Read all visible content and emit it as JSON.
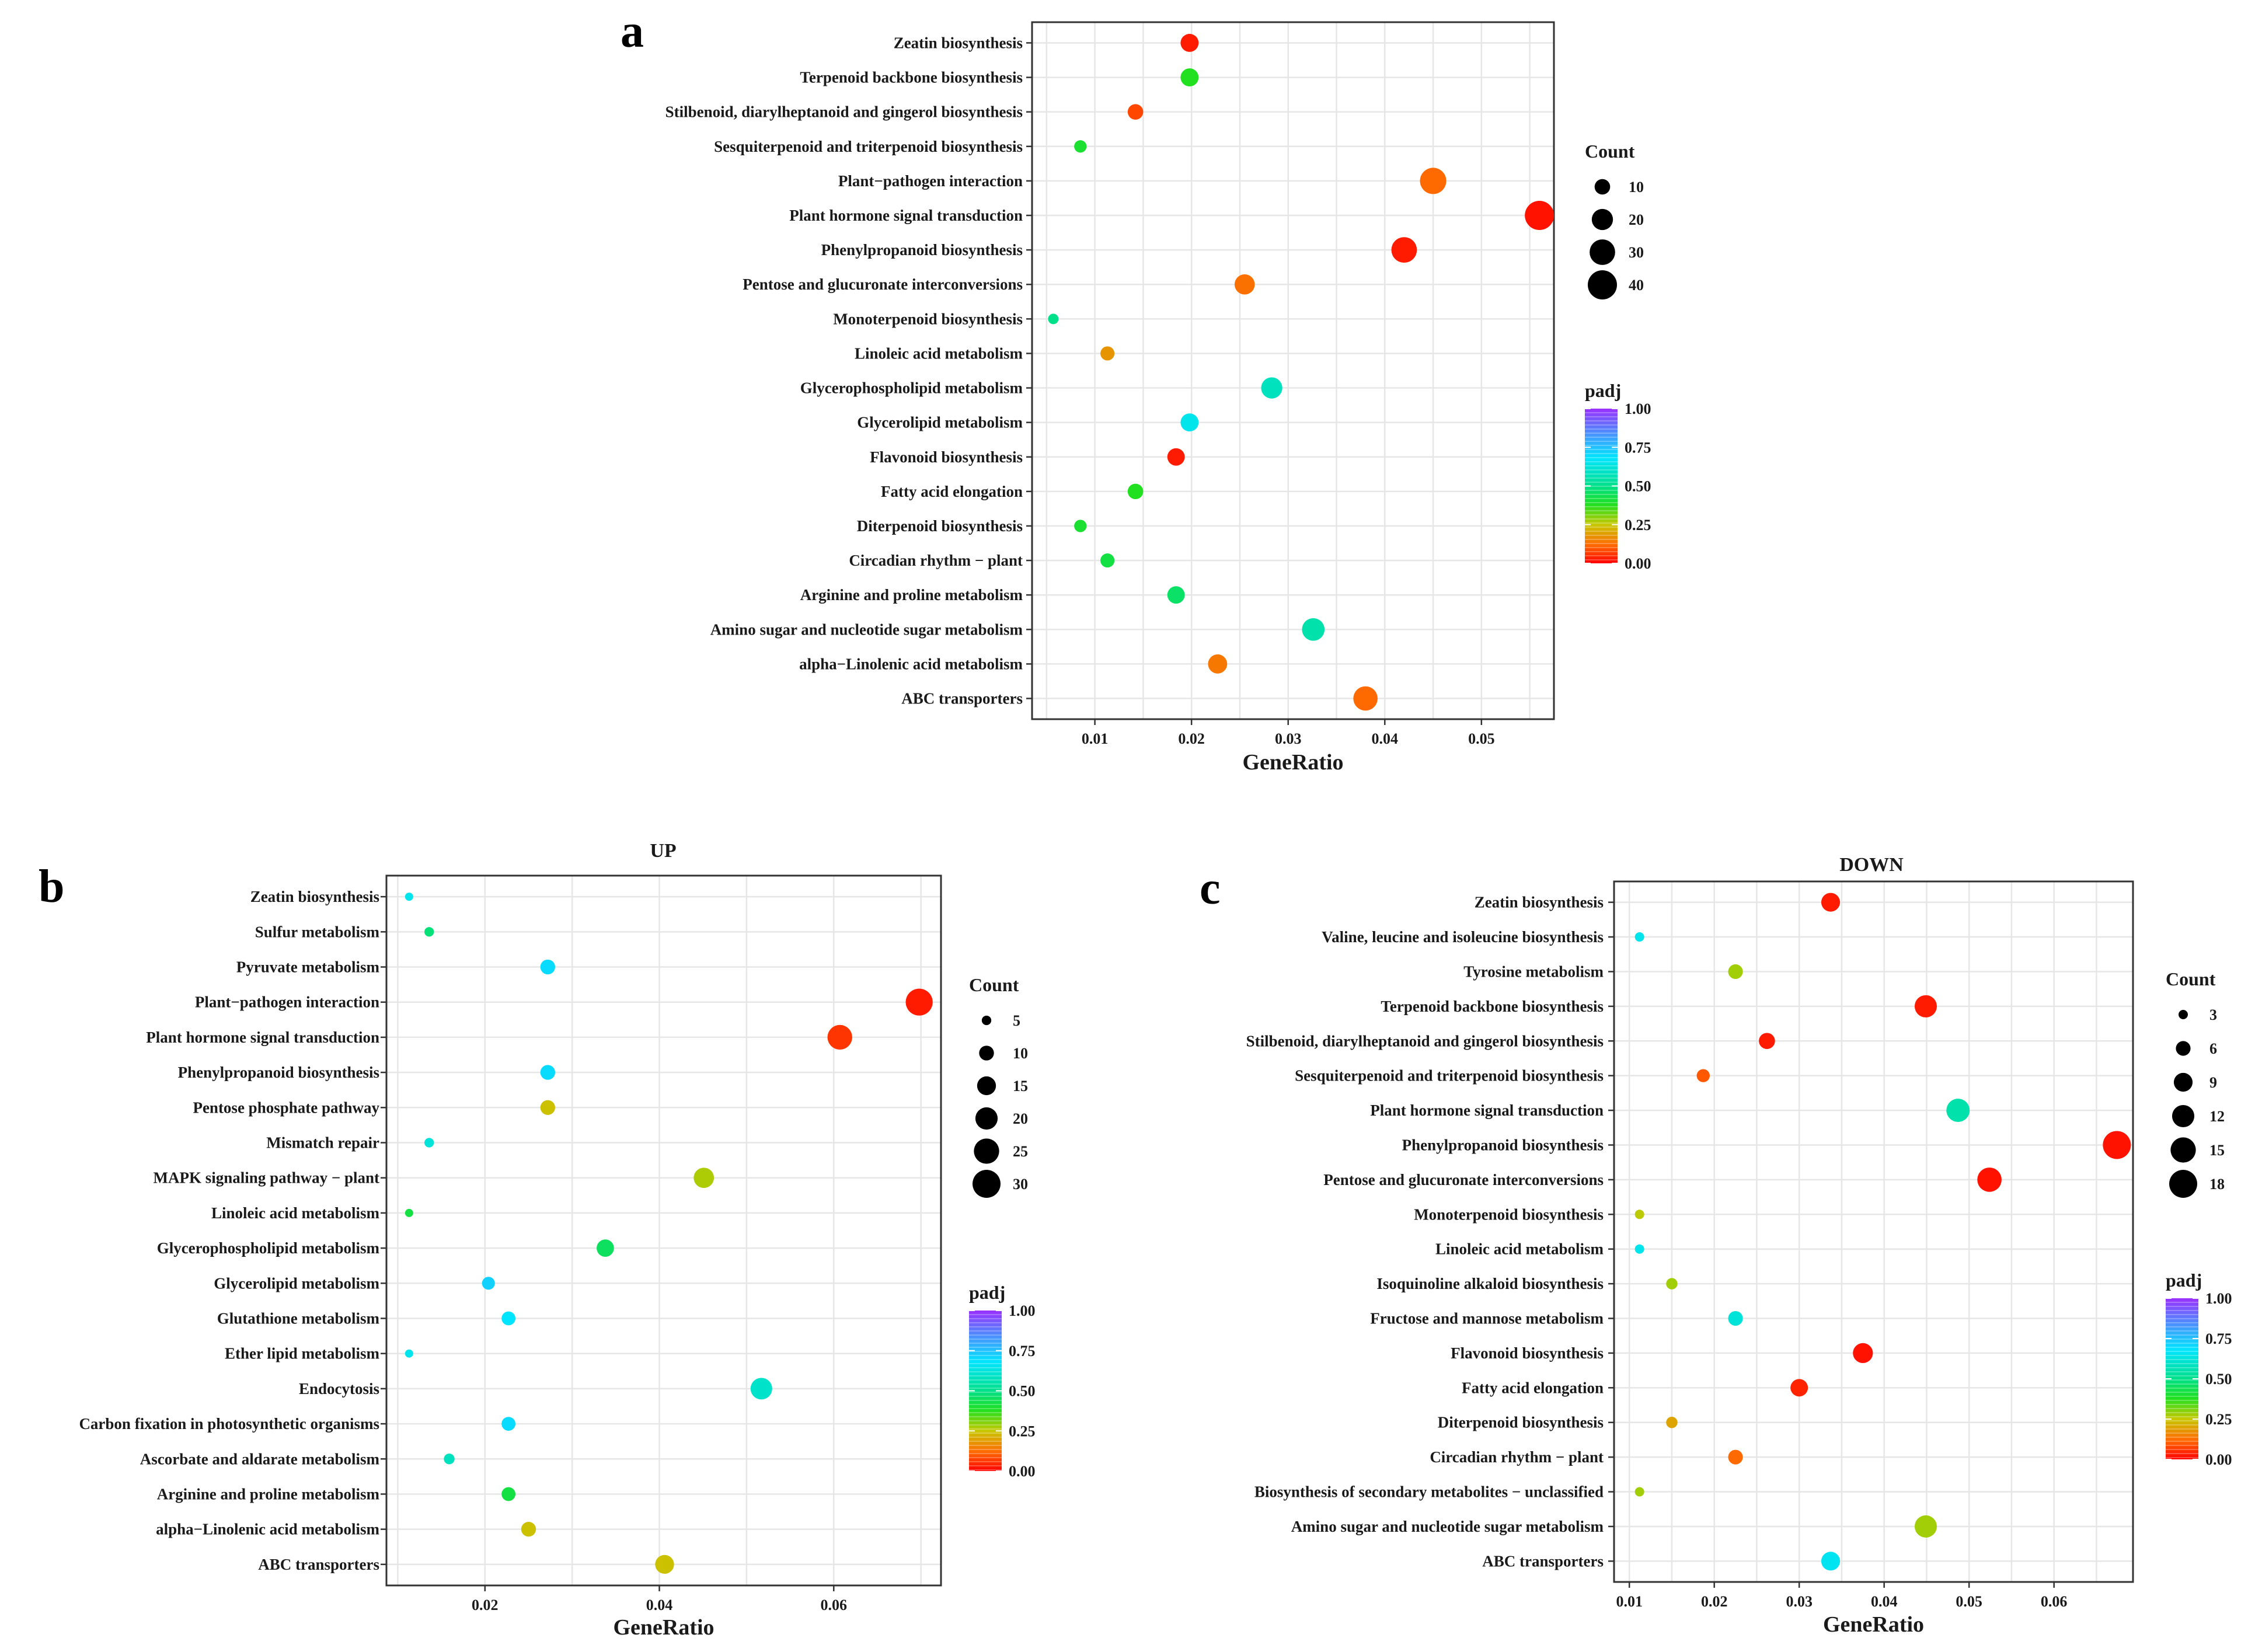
{
  "chart_data": [
    {
      "panel": "a",
      "type": "scatter",
      "title": "",
      "xlabel": "GeneRatio",
      "ylabel": "",
      "xlim": [
        0.0035,
        0.0575
      ],
      "xticks": [
        0.01,
        0.02,
        0.03,
        0.04,
        0.05
      ],
      "xtick_labels": [
        "0.01",
        "0.02",
        "0.03",
        "0.04",
        "0.05"
      ],
      "categories": [
        "Zeatin biosynthesis",
        "Terpenoid backbone biosynthesis",
        "Stilbenoid, diarylheptanoid and gingerol biosynthesis",
        "Sesquiterpenoid and triterpenoid biosynthesis",
        "Plant−pathogen interaction",
        "Plant hormone signal transduction",
        "Phenylpropanoid biosynthesis",
        "Pentose and glucuronate interconversions",
        "Monoterpenoid biosynthesis",
        "Linoleic acid metabolism",
        "Glycerophospholipid metabolism",
        "Glycerolipid metabolism",
        "Flavonoid biosynthesis",
        "Fatty acid elongation",
        "Diterpenoid biosynthesis",
        "Circadian rhythm − plant",
        "Arginine and proline metabolism",
        "Amino sugar and nucleotide sugar metabolism",
        "alpha−Linolenic acid metabolism",
        "ABC transporters"
      ],
      "points": [
        {
          "gene_ratio": 0.0198,
          "count": 14,
          "padj": 0.03
        },
        {
          "gene_ratio": 0.0198,
          "count": 14,
          "padj": 0.38
        },
        {
          "gene_ratio": 0.0142,
          "count": 10,
          "padj": 0.08
        },
        {
          "gene_ratio": 0.0085,
          "count": 6,
          "padj": 0.4
        },
        {
          "gene_ratio": 0.045,
          "count": 32,
          "padj": 0.12
        },
        {
          "gene_ratio": 0.056,
          "count": 40,
          "padj": 0.02
        },
        {
          "gene_ratio": 0.042,
          "count": 30,
          "padj": 0.03
        },
        {
          "gene_ratio": 0.0255,
          "count": 18,
          "padj": 0.13
        },
        {
          "gene_ratio": 0.0057,
          "count": 4,
          "padj": 0.5
        },
        {
          "gene_ratio": 0.0113,
          "count": 8,
          "padj": 0.18
        },
        {
          "gene_ratio": 0.0283,
          "count": 20,
          "padj": 0.58
        },
        {
          "gene_ratio": 0.0198,
          "count": 14,
          "padj": 0.65
        },
        {
          "gene_ratio": 0.0184,
          "count": 13,
          "padj": 0.03
        },
        {
          "gene_ratio": 0.0142,
          "count": 10,
          "padj": 0.38
        },
        {
          "gene_ratio": 0.0085,
          "count": 6,
          "padj": 0.4
        },
        {
          "gene_ratio": 0.0113,
          "count": 8,
          "padj": 0.42
        },
        {
          "gene_ratio": 0.0184,
          "count": 13,
          "padj": 0.46
        },
        {
          "gene_ratio": 0.0326,
          "count": 23,
          "padj": 0.55
        },
        {
          "gene_ratio": 0.0227,
          "count": 16,
          "padj": 0.14
        },
        {
          "gene_ratio": 0.038,
          "count": 27,
          "padj": 0.12
        }
      ],
      "size_legend": {
        "title": "Count",
        "values": [
          10,
          20,
          30,
          40
        ],
        "labels": [
          "10",
          "20",
          "30",
          "40"
        ]
      },
      "color_legend": {
        "title": "padj",
        "ticks": [
          1.0,
          0.75,
          0.5,
          0.25,
          0.0
        ],
        "labels": [
          "1.00",
          "0.75",
          "0.50",
          "0.25",
          "0.00"
        ]
      }
    },
    {
      "panel": "b",
      "type": "scatter",
      "title": "UP",
      "xlabel": "GeneRatio",
      "ylabel": "",
      "xlim": [
        0.0087,
        0.0723
      ],
      "xticks": [
        0.02,
        0.04,
        0.06
      ],
      "xtick_labels": [
        "0.02",
        "0.04",
        "0.06"
      ],
      "categories": [
        "Zeatin biosynthesis",
        "Sulfur metabolism",
        "Pyruvate metabolism",
        "Plant−pathogen interaction",
        "Plant hormone signal transduction",
        "Phenylpropanoid biosynthesis",
        "Pentose phosphate pathway",
        "Mismatch repair",
        "MAPK signaling pathway − plant",
        "Linoleic acid metabolism",
        "Glycerophospholipid metabolism",
        "Glycerolipid metabolism",
        "Glutathione metabolism",
        "Ether lipid metabolism",
        "Endocytosis",
        "Carbon fixation in photosynthetic organisms",
        "Ascorbate and aldarate metabolism",
        "Arginine and proline metabolism",
        "alpha−Linolenic acid metabolism",
        "ABC transporters"
      ],
      "points": [
        {
          "gene_ratio": 0.0113,
          "count": 4,
          "padj": 0.65
        },
        {
          "gene_ratio": 0.0136,
          "count": 5,
          "padj": 0.48
        },
        {
          "gene_ratio": 0.0272,
          "count": 10,
          "padj": 0.7
        },
        {
          "gene_ratio": 0.0698,
          "count": 28,
          "padj": 0.03
        },
        {
          "gene_ratio": 0.0607,
          "count": 24,
          "padj": 0.06
        },
        {
          "gene_ratio": 0.0272,
          "count": 10,
          "padj": 0.7
        },
        {
          "gene_ratio": 0.0272,
          "count": 10,
          "padj": 0.24
        },
        {
          "gene_ratio": 0.0136,
          "count": 5,
          "padj": 0.62
        },
        {
          "gene_ratio": 0.0451,
          "count": 17,
          "padj": 0.27
        },
        {
          "gene_ratio": 0.0113,
          "count": 4,
          "padj": 0.42
        },
        {
          "gene_ratio": 0.0338,
          "count": 13,
          "padj": 0.45
        },
        {
          "gene_ratio": 0.0204,
          "count": 8,
          "padj": 0.72
        },
        {
          "gene_ratio": 0.0227,
          "count": 9,
          "padj": 0.68
        },
        {
          "gene_ratio": 0.0113,
          "count": 4,
          "padj": 0.65
        },
        {
          "gene_ratio": 0.0517,
          "count": 19,
          "padj": 0.6
        },
        {
          "gene_ratio": 0.0227,
          "count": 9,
          "padj": 0.7
        },
        {
          "gene_ratio": 0.0159,
          "count": 6,
          "padj": 0.58
        },
        {
          "gene_ratio": 0.0227,
          "count": 9,
          "padj": 0.42
        },
        {
          "gene_ratio": 0.025,
          "count": 10,
          "padj": 0.24
        },
        {
          "gene_ratio": 0.0406,
          "count": 15,
          "padj": 0.24
        }
      ],
      "size_legend": {
        "title": "Count",
        "values": [
          5,
          10,
          15,
          20,
          25,
          30
        ],
        "labels": [
          "5",
          "10",
          "15",
          "20",
          "25",
          "30"
        ]
      },
      "color_legend": {
        "title": "padj",
        "ticks": [
          1.0,
          0.75,
          0.5,
          0.25,
          0.0
        ],
        "labels": [
          "1.00",
          "0.75",
          "0.50",
          "0.25",
          "0.00"
        ]
      }
    },
    {
      "panel": "c",
      "type": "scatter",
      "title": "DOWN",
      "xlabel": "GeneRatio",
      "ylabel": "",
      "xlim": [
        0.0082,
        0.0693
      ],
      "xticks": [
        0.01,
        0.02,
        0.03,
        0.04,
        0.05,
        0.06
      ],
      "xtick_labels": [
        "0.01",
        "0.02",
        "0.03",
        "0.04",
        "0.05",
        "0.06"
      ],
      "categories": [
        "Zeatin biosynthesis",
        "Valine, leucine and isoleucine biosynthesis",
        "Tyrosine metabolism",
        "Terpenoid backbone biosynthesis",
        "Stilbenoid, diarylheptanoid and gingerol biosynthesis",
        "Sesquiterpenoid and triterpenoid biosynthesis",
        "Plant hormone signal transduction",
        "Phenylpropanoid biosynthesis",
        "Pentose and glucuronate interconversions",
        "Monoterpenoid biosynthesis",
        "Linoleic acid metabolism",
        "Isoquinoline alkaloid biosynthesis",
        "Fructose and mannose metabolism",
        "Flavonoid biosynthesis",
        "Fatty acid elongation",
        "Diterpenoid biosynthesis",
        "Circadian rhythm − plant",
        "Biosynthesis of secondary metabolites − unclassified",
        "Amino sugar and nucleotide sugar metabolism",
        "ABC transporters"
      ],
      "points": [
        {
          "gene_ratio": 0.0337,
          "count": 9,
          "padj": 0.03
        },
        {
          "gene_ratio": 0.0112,
          "count": 3,
          "padj": 0.65
        },
        {
          "gene_ratio": 0.0225,
          "count": 6,
          "padj": 0.28
        },
        {
          "gene_ratio": 0.0449,
          "count": 12,
          "padj": 0.03
        },
        {
          "gene_ratio": 0.0262,
          "count": 7,
          "padj": 0.03
        },
        {
          "gene_ratio": 0.0187,
          "count": 5,
          "padj": 0.1
        },
        {
          "gene_ratio": 0.0487,
          "count": 13,
          "padj": 0.55
        },
        {
          "gene_ratio": 0.0674,
          "count": 18,
          "padj": 0.02
        },
        {
          "gene_ratio": 0.0524,
          "count": 14,
          "padj": 0.02
        },
        {
          "gene_ratio": 0.0112,
          "count": 3,
          "padj": 0.26
        },
        {
          "gene_ratio": 0.0112,
          "count": 3,
          "padj": 0.65
        },
        {
          "gene_ratio": 0.015,
          "count": 4,
          "padj": 0.28
        },
        {
          "gene_ratio": 0.0225,
          "count": 6,
          "padj": 0.62
        },
        {
          "gene_ratio": 0.0375,
          "count": 10,
          "padj": 0.02
        },
        {
          "gene_ratio": 0.03,
          "count": 8,
          "padj": 0.04
        },
        {
          "gene_ratio": 0.015,
          "count": 4,
          "padj": 0.2
        },
        {
          "gene_ratio": 0.0225,
          "count": 6,
          "padj": 0.12
        },
        {
          "gene_ratio": 0.0112,
          "count": 3,
          "padj": 0.28
        },
        {
          "gene_ratio": 0.0449,
          "count": 12,
          "padj": 0.28
        },
        {
          "gene_ratio": 0.0337,
          "count": 9,
          "padj": 0.66
        }
      ],
      "size_legend": {
        "title": "Count",
        "values": [
          3,
          6,
          9,
          12,
          15,
          18
        ],
        "labels": [
          "3",
          "6",
          "9",
          "12",
          "15",
          "18"
        ]
      },
      "color_legend": {
        "title": "padj",
        "ticks": [
          1.0,
          0.75,
          0.5,
          0.25,
          0.0
        ],
        "labels": [
          "1.00",
          "0.75",
          "0.50",
          "0.25",
          "0.00"
        ]
      }
    }
  ]
}
